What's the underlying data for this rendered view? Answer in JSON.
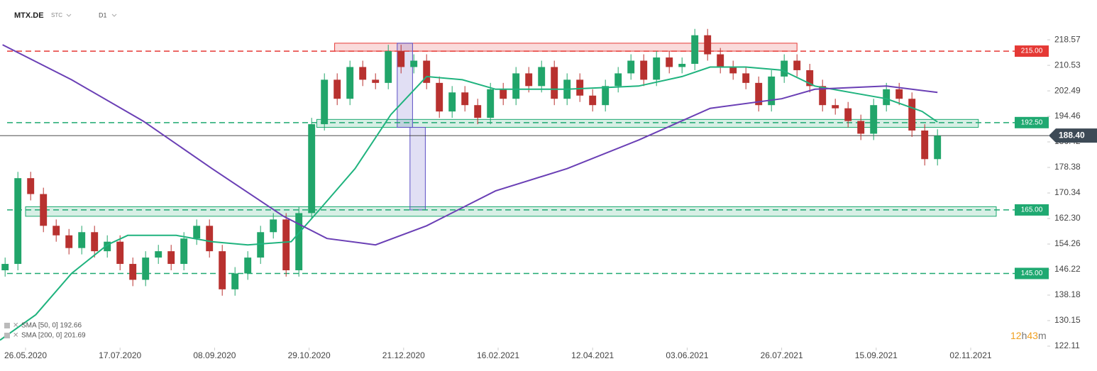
{
  "chart_data": {
    "type": "candlestick",
    "symbol": "MTX.DE",
    "mode": "STC",
    "interval": "D1",
    "xlim": [
      0,
      390
    ],
    "ylim": [
      115.4,
      231.1
    ],
    "xticks": [
      {
        "value": 10,
        "label": "26.05.2020"
      },
      {
        "value": 47,
        "label": "17.07.2020"
      },
      {
        "value": 84,
        "label": "08.09.2020"
      },
      {
        "value": 121,
        "label": "29.10.2020"
      },
      {
        "value": 158,
        "label": "21.12.2020"
      },
      {
        "value": 195,
        "label": "16.02.2021"
      },
      {
        "value": 232,
        "label": "12.04.2021"
      },
      {
        "value": 269,
        "label": "03.06.2021"
      },
      {
        "value": 306,
        "label": "26.07.2021"
      },
      {
        "value": 343,
        "label": "15.09.2021"
      },
      {
        "value": 380,
        "label": "02.11.2021"
      }
    ],
    "yticks": [
      218.57,
      210.53,
      202.49,
      194.46,
      186.42,
      178.38,
      170.34,
      {
        "value": 162.3,
        "label": "162.30"
      },
      154.26,
      146.22,
      138.18,
      130.15,
      122.11
    ],
    "up_color": "#21a56a",
    "down_color": "#b8312f",
    "x": [
      2,
      7,
      12,
      17,
      22,
      27,
      32,
      37,
      42,
      47,
      52,
      57,
      62,
      67,
      72,
      77,
      82,
      87,
      92,
      97,
      102,
      107,
      112,
      117,
      122,
      127,
      132,
      137,
      142,
      147,
      152,
      157,
      162,
      167,
      172,
      177,
      182,
      187,
      192,
      197,
      202,
      207,
      212,
      217,
      222,
      227,
      232,
      237,
      242,
      247,
      252,
      257,
      262,
      267,
      272,
      277,
      282,
      287,
      292,
      297,
      302,
      307,
      312,
      317,
      322,
      327,
      332,
      337,
      342,
      347,
      352,
      357,
      362,
      367
    ],
    "open": [
      146,
      148,
      175,
      170,
      160,
      157,
      153,
      158,
      152,
      155,
      148,
      143,
      150,
      152,
      148,
      156,
      160,
      152,
      140,
      145,
      150,
      158,
      162,
      146,
      164,
      192,
      206,
      200,
      210,
      206,
      205,
      215,
      210,
      212,
      205,
      196,
      202,
      198,
      194,
      203,
      200,
      208,
      204,
      210,
      200,
      206,
      201,
      198,
      204,
      208,
      212,
      206,
      213,
      210,
      211,
      220,
      214,
      210,
      208,
      205,
      198,
      207,
      212,
      209,
      204,
      198,
      197,
      193,
      189,
      198,
      203,
      200,
      190,
      181
    ],
    "high": [
      150,
      177,
      177,
      172,
      162,
      159,
      160,
      160,
      157,
      157,
      150,
      152,
      154,
      154,
      158,
      162,
      162,
      154,
      147,
      152,
      160,
      164,
      164,
      166,
      194,
      208,
      208,
      212,
      212,
      208,
      217,
      217,
      214,
      214,
      207,
      204,
      204,
      200,
      205,
      205,
      210,
      210,
      212,
      212,
      208,
      208,
      203,
      206,
      210,
      214,
      214,
      215,
      215,
      213,
      222,
      222,
      216,
      212,
      210,
      207,
      209,
      214,
      214,
      211,
      206,
      200,
      199,
      195,
      200,
      205,
      205,
      202,
      192,
      190.4
    ],
    "low": [
      144,
      146,
      168,
      158,
      155,
      151,
      151,
      150,
      150,
      146,
      141,
      141,
      148,
      146,
      146,
      154,
      150,
      138,
      138,
      143,
      148,
      156,
      144,
      144,
      162,
      190,
      198,
      198,
      204,
      203,
      203,
      208,
      208,
      203,
      194,
      194,
      196,
      192,
      192,
      198,
      198,
      202,
      202,
      198,
      198,
      199,
      196,
      196,
      202,
      206,
      204,
      204,
      208,
      208,
      209,
      212,
      208,
      206,
      203,
      196,
      196,
      205,
      207,
      202,
      196,
      195,
      191,
      187,
      187,
      196,
      198,
      188,
      179,
      179
    ],
    "close": [
      148,
      175,
      170,
      160,
      157,
      153,
      158,
      152,
      155,
      148,
      143,
      150,
      152,
      148,
      156,
      160,
      152,
      140,
      145,
      150,
      158,
      162,
      146,
      164,
      192,
      206,
      200,
      210,
      206,
      205,
      215,
      210,
      212,
      205,
      196,
      202,
      198,
      194,
      203,
      200,
      208,
      204,
      210,
      200,
      206,
      201,
      198,
      204,
      208,
      212,
      206,
      213,
      210,
      211,
      220,
      214,
      210,
      208,
      205,
      198,
      207,
      212,
      209,
      204,
      198,
      197,
      193,
      189,
      198,
      203,
      200,
      190,
      181,
      188.4
    ],
    "indicators": [
      {
        "name": "SMA [50, 0] 192.66",
        "color": "#1fb37e",
        "x": [
          0,
          14,
          28,
          42,
          50,
          69,
          83,
          97,
          114,
          125,
          139,
          153,
          167,
          181,
          194,
          222,
          250,
          267,
          278,
          292,
          306,
          319,
          333,
          347,
          361,
          367
        ],
        "values": [
          124,
          132,
          145,
          154,
          157,
          157,
          155,
          154,
          155,
          165,
          178,
          195,
          207,
          206,
          203,
          203,
          204,
          207,
          210,
          210,
          209,
          204,
          202,
          200,
          196,
          192.7
        ]
      },
      {
        "name": "SMA [200, 0] 201.69",
        "color": "#6a3fb5",
        "x": [
          1,
          28,
          56,
          83,
          111,
          128,
          147,
          167,
          194,
          222,
          250,
          278,
          306,
          319,
          347,
          367
        ],
        "values": [
          217,
          206,
          193,
          178,
          163,
          156,
          154,
          160,
          171,
          178,
          187,
          197,
          200,
          203,
          204,
          202
        ]
      }
    ],
    "levels": [
      {
        "value": 215,
        "label": "215.00",
        "color": "#e53935"
      },
      {
        "value": 192.5,
        "label": "192.50",
        "color": "#1fa971"
      },
      {
        "value": 165,
        "label": "165.00",
        "color": "#1fa971"
      },
      {
        "value": 145,
        "label": "145.00",
        "color": "#1fa971"
      }
    ],
    "zones": [
      {
        "x": [
          131,
          312
        ],
        "y": [
          215,
          217.5
        ],
        "color": "#e53935"
      },
      {
        "x": [
          124,
          383
        ],
        "y": [
          191,
          193.5
        ],
        "color": "#1fa971"
      },
      {
        "x": [
          10,
          390
        ],
        "y": [
          163,
          166
        ],
        "color": "#1fa971"
      },
      {
        "x": [
          155.5,
          161.5
        ],
        "y": [
          191,
          217.5
        ],
        "color": "#5b4fc4"
      },
      {
        "x": [
          160.5,
          166.5
        ],
        "y": [
          165,
          191
        ],
        "color": "#5b4fc4"
      }
    ],
    "last_price": {
      "value": 188.4,
      "label": "188.40"
    },
    "countdown": [
      "12",
      "h",
      "43",
      "m"
    ]
  }
}
